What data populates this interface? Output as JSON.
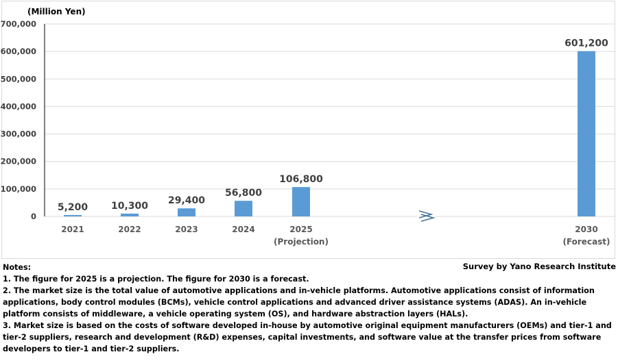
{
  "chart_data": {
    "type": "bar",
    "ylabel": "(Million Yen)",
    "ylim": [
      0,
      700000
    ],
    "yticks": [
      "0",
      "100,000",
      "200,000",
      "300,000",
      "400,000",
      "500,000",
      "600,000",
      "700,000"
    ],
    "categories": [
      [
        "2021"
      ],
      [
        "2022"
      ],
      [
        "2023"
      ],
      [
        "2024"
      ],
      [
        "2025",
        "(Projection)"
      ],
      [
        "2030",
        "(Forecast)"
      ]
    ],
    "values": [
      5200,
      10300,
      29400,
      56800,
      106800,
      601200
    ],
    "data_labels": [
      "5,200",
      "10,300",
      "29,400",
      "56,800",
      "106,800",
      "601,200"
    ],
    "bar_color": "#5b9bd5",
    "axis_break": "between 2025 and 2030",
    "grid": true
  },
  "source": "Survey by Yano Research Institute",
  "notes": {
    "heading": "Notes:",
    "items": [
      "1. The figure for 2025 is a projection. The figure for 2030 is a forecast.",
      "2. The market size is the total value of automotive applications and in-vehicle platforms. Automotive applications consist of information applications, body control modules (BCMs), vehicle control applications and advanced driver assistance systems (ADAS). An in-vehicle platform consists of middleware, a vehicle operating system (OS), and hardware abstraction layers (HALs).",
      "3. Market size is based on the costs of software developed in-house by automotive original equipment manufacturers (OEMs) and tier-1 and tier-2 suppliers, research and development (R&D) expenses, capital investments, and software value at the transfer prices from software developers to tier-1 and tier-2 suppliers."
    ]
  }
}
